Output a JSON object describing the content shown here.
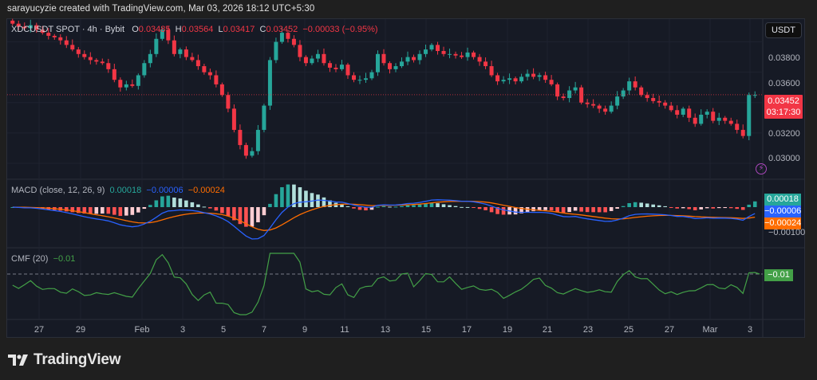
{
  "attribution": "sarayucyzie created with TradingView.com, Mar 03, 2026 18:12 UTC+5:30",
  "symbol": {
    "name": "XDCUSDT SPOT · 4h · Bybit",
    "o_label": "O",
    "o": "0.03485",
    "h_label": "H",
    "h": "0.03564",
    "l_label": "L",
    "l": "0.03417",
    "c_label": "C",
    "c": "0.03452",
    "change": "−0.00033 (−0.95%)"
  },
  "currency_button": "USDT",
  "price_axis": [
    "0.03800",
    "0.03600",
    "0.03200",
    "0.03000"
  ],
  "last_price": {
    "value": "0.03452",
    "countdown": "03:17:30"
  },
  "macd": {
    "title": "MACD (close, 12, 26, 9)",
    "hist": "0.00018",
    "macd": "−0.00006",
    "signal": "−0.00024",
    "axis_label": "−0.00100"
  },
  "cmf": {
    "title": "CMF (20)",
    "value": "−0.01"
  },
  "time_axis": [
    "27",
    "29",
    "Feb",
    "3",
    "5",
    "7",
    "9",
    "11",
    "13",
    "15",
    "17",
    "19",
    "21",
    "23",
    "25",
    "27",
    "Mar",
    "3"
  ],
  "brand": "TradingView",
  "colors": {
    "up": "#26a69a",
    "down": "#f23645",
    "macd": "#2962ff",
    "signal": "#ff6d00",
    "cmf": "#43a047",
    "bg": "#161a25"
  },
  "chart_data": [
    {
      "type": "candlestick",
      "title": "XDCUSDT SPOT · 4h · Bybit",
      "ylabel": "USDT",
      "ylim": [
        0.029,
        0.0395
      ],
      "x_ticks": [
        "27",
        "29",
        "Feb",
        "3",
        "5",
        "7",
        "9",
        "11",
        "13",
        "15",
        "17",
        "19",
        "21",
        "23",
        "25",
        "27",
        "Mar",
        "3"
      ],
      "y_ticks": [
        0.03,
        0.032,
        0.036,
        0.038
      ],
      "last": {
        "open": 0.03485,
        "high": 0.03564,
        "low": 0.03417,
        "close": 0.03452,
        "change": -0.00033,
        "change_pct": -0.95
      },
      "close_path": [
        0.0392,
        0.039,
        0.0389,
        0.0391,
        0.0388,
        0.0386,
        0.0384,
        0.0383,
        0.0381,
        0.0378,
        0.0375,
        0.0372,
        0.037,
        0.0368,
        0.0367,
        0.0366,
        0.0362,
        0.0355,
        0.035,
        0.0352,
        0.0351,
        0.0358,
        0.0366,
        0.0372,
        0.0382,
        0.0388,
        0.0381,
        0.0372,
        0.0375,
        0.037,
        0.0368,
        0.0364,
        0.036,
        0.0358,
        0.0352,
        0.0345,
        0.0336,
        0.0322,
        0.0312,
        0.0305,
        0.0308,
        0.0322,
        0.0338,
        0.0368,
        0.038,
        0.0386,
        0.0382,
        0.0378,
        0.037,
        0.0366,
        0.0369,
        0.0372,
        0.0366,
        0.0363,
        0.0362,
        0.0365,
        0.0358,
        0.0355,
        0.0355,
        0.0356,
        0.036,
        0.0372,
        0.0366,
        0.0362,
        0.0364,
        0.0367,
        0.037,
        0.0368,
        0.0372,
        0.0375,
        0.0378,
        0.0374,
        0.0372,
        0.0372,
        0.0371,
        0.037,
        0.0373,
        0.037,
        0.0367,
        0.0364,
        0.0358,
        0.0354,
        0.0355,
        0.0356,
        0.0354,
        0.0357,
        0.0359,
        0.0357,
        0.0358,
        0.0355,
        0.0352,
        0.0344,
        0.0343,
        0.0348,
        0.035,
        0.034,
        0.0339,
        0.0338,
        0.0336,
        0.0334,
        0.0338,
        0.0344,
        0.0348,
        0.0354,
        0.035,
        0.0345,
        0.0343,
        0.0341,
        0.034,
        0.0338,
        0.0335,
        0.0332,
        0.0336,
        0.033,
        0.0326,
        0.0332,
        0.0334,
        0.0328,
        0.033,
        0.0328,
        0.0326,
        0.0322,
        0.0318,
        0.0345,
        0.0345
      ]
    },
    {
      "type": "line",
      "title": "MACD (close, 12, 26, 9)",
      "series": [
        {
          "name": "Histogram",
          "last": 0.00018
        },
        {
          "name": "MACD",
          "last": -6e-05
        },
        {
          "name": "Signal",
          "last": -0.00024
        }
      ],
      "y_ticks": [
        -0.001
      ]
    },
    {
      "type": "line",
      "title": "CMF (20)",
      "series": [
        {
          "name": "CMF",
          "last": -0.01
        }
      ],
      "reference_line": 0
    }
  ]
}
